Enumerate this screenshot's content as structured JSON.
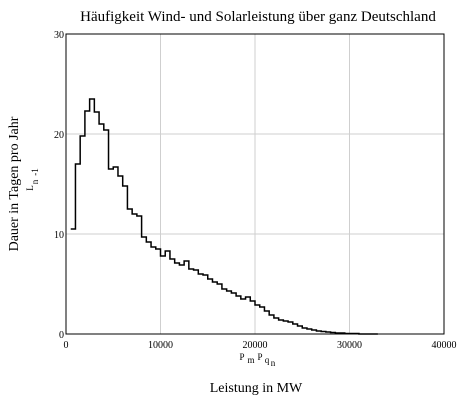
{
  "chart_data": {
    "type": "line",
    "title": "Häufigkeit Wind- und Solarleistung über ganz Deutschland",
    "xlabel": "Leistung in MW",
    "ylabel": "Dauer in Tagen pro Jahr",
    "y_axis_marker": "L",
    "y_axis_marker_sub": "n",
    "y_axis_marker_sup": "-1",
    "x_axis_marker": "P",
    "x_axis_marker_parts": [
      "m",
      "P",
      "q",
      "n"
    ],
    "xlim": [
      0,
      40000
    ],
    "ylim": [
      0,
      30
    ],
    "x_ticks": [
      "0",
      "10000",
      "20000",
      "30000",
      "40000"
    ],
    "y_ticks": [
      "0",
      "10",
      "20",
      "30"
    ],
    "grid": true,
    "step_edges_start": 500,
    "step_width": 500,
    "series": [
      {
        "values": [
          10.5,
          17.0,
          19.8,
          22.3,
          23.5,
          22.2,
          21.0,
          20.4,
          16.5,
          16.7,
          15.8,
          14.8,
          12.5,
          12.0,
          11.8,
          9.7,
          9.2,
          8.7,
          8.5,
          7.8,
          8.3,
          7.5,
          7.1,
          6.9,
          7.3,
          6.5,
          6.4,
          6.0,
          5.9,
          5.5,
          5.2,
          5.0,
          4.5,
          4.3,
          4.1,
          3.8,
          3.5,
          3.7,
          3.3,
          2.9,
          2.7,
          2.3,
          1.9,
          1.6,
          1.4,
          1.3,
          1.2,
          1.0,
          0.8,
          0.6,
          0.5,
          0.4,
          0.3,
          0.25,
          0.2,
          0.15,
          0.1,
          0.1,
          0.05,
          0.05,
          0.05,
          0.0,
          0.0,
          0.0,
          0.0
        ]
      }
    ]
  }
}
